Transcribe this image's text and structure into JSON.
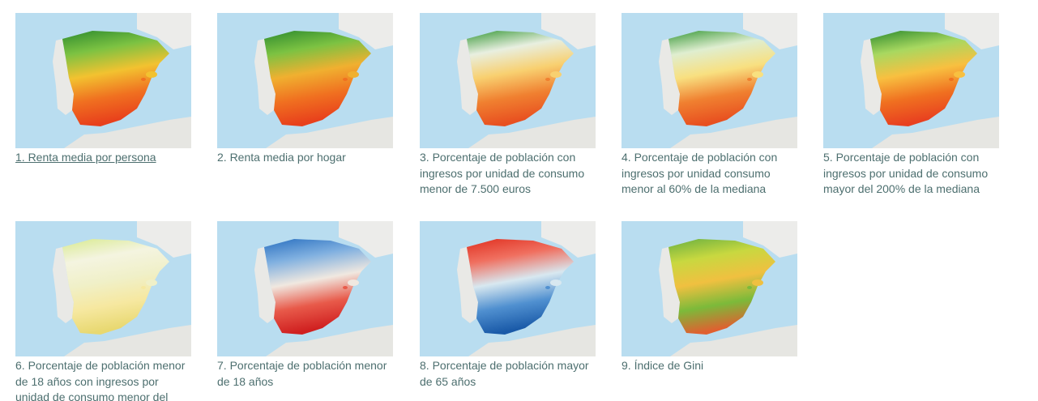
{
  "items": [
    {
      "caption": "1. Renta media por persona"
    },
    {
      "caption": "2. Renta media por hogar"
    },
    {
      "caption": "3. Porcentaje de población con ingresos por unidad de consumo menor de 7.500 euros"
    },
    {
      "caption": "4. Porcentaje de población con ingresos por unidad consumo menor al 60% de la mediana"
    },
    {
      "caption": "5. Porcentaje de población con ingresos por unidad de consumo mayor del 200% de la mediana"
    },
    {
      "caption": "6. Porcentaje de población menor de 18 años con ingresos por unidad de consumo menor del"
    },
    {
      "caption": "7. Porcentaje de población menor de 18 años"
    },
    {
      "caption": "8. Porcentaje de población mayor de 65 años"
    },
    {
      "caption": "9. Índice de Gini"
    }
  ]
}
